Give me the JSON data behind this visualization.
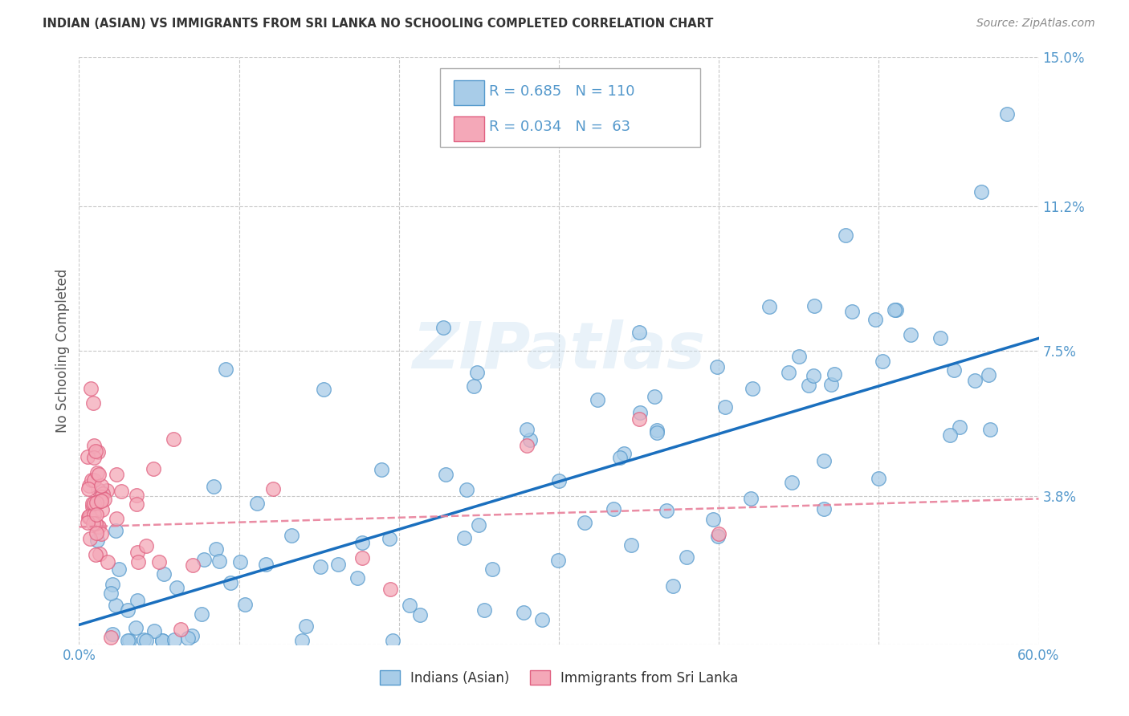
{
  "title": "INDIAN (ASIAN) VS IMMIGRANTS FROM SRI LANKA NO SCHOOLING COMPLETED CORRELATION CHART",
  "source": "Source: ZipAtlas.com",
  "ylabel": "No Schooling Completed",
  "xlim": [
    0.0,
    0.6
  ],
  "ylim": [
    0.0,
    0.15
  ],
  "xticks": [
    0.0,
    0.1,
    0.2,
    0.3,
    0.4,
    0.5,
    0.6
  ],
  "xticklabels": [
    "0.0%",
    "",
    "",
    "",
    "",
    "",
    "60.0%"
  ],
  "ytick_positions": [
    0.0,
    0.038,
    0.075,
    0.112,
    0.15
  ],
  "yticklabels": [
    "",
    "3.8%",
    "7.5%",
    "11.2%",
    "15.0%"
  ],
  "blue_R": 0.685,
  "blue_N": 110,
  "pink_R": 0.034,
  "pink_N": 63,
  "blue_color": "#a8cce8",
  "pink_color": "#f4a8b8",
  "blue_line_color": "#1a6fbe",
  "pink_line_color": "#e8809a",
  "blue_edge_color": "#5599cc",
  "pink_edge_color": "#e06080",
  "background_color": "#ffffff",
  "grid_color": "#c8c8c8",
  "watermark": "ZIPatlas",
  "legend_label_blue": "Indians (Asian)",
  "legend_label_pink": "Immigrants from Sri Lanka",
  "title_color": "#333333",
  "source_color": "#888888",
  "tick_color": "#5599cc",
  "ylabel_color": "#555555",
  "blue_line_intercept": 0.005,
  "blue_line_slope": 0.122,
  "pink_line_intercept": 0.03,
  "pink_line_slope": 0.012
}
